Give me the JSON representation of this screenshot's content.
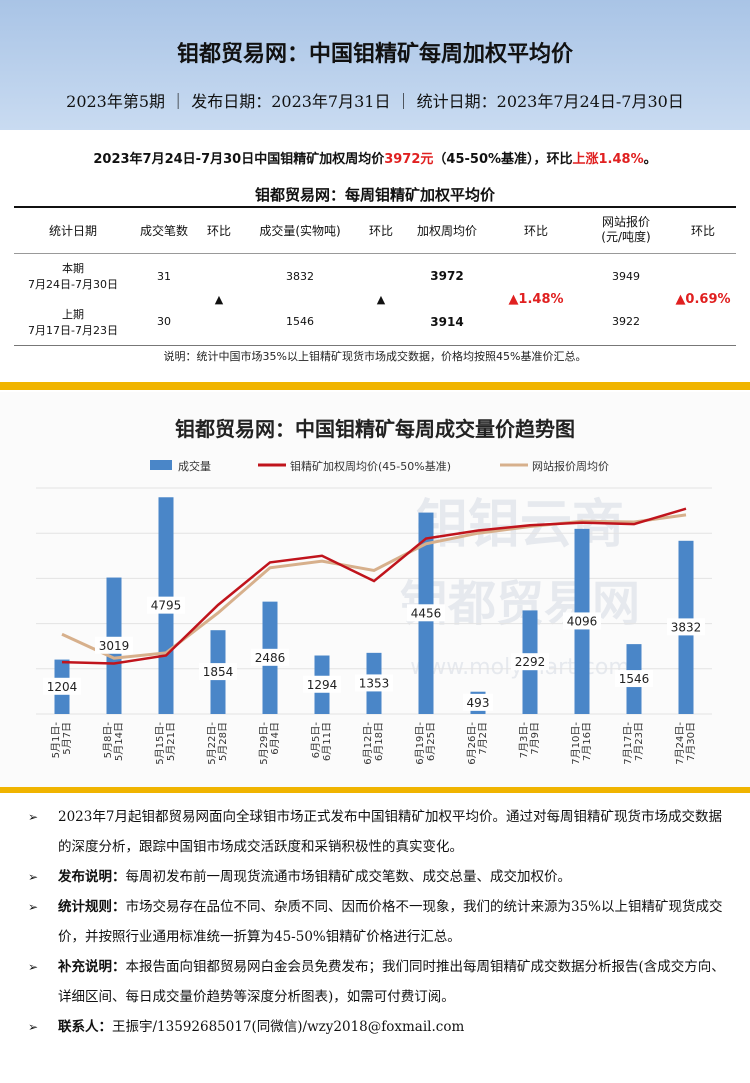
{
  "header": {
    "title": "钼都贸易网：中国钼精矿每周加权平均价",
    "subtitle": "2023年第5期 ｜ 发布日期：2023年7月31日 ｜ 统计日期：2023年7月24日-7月30日"
  },
  "summary": {
    "prefix": "2023年7月24日-7月30日中国钼精矿加权周均价",
    "price": "3972元",
    "middle": "（45-50%基准），环比",
    "change": "上涨1.48%",
    "suffix": "。"
  },
  "table": {
    "title": "钼都贸易网：每周钼精矿加权平均价",
    "headers": [
      "统计日期",
      "成交笔数",
      "环比",
      "成交量(实物吨)",
      "环比",
      "加权周均价",
      "环比",
      "网站报价\n(元/吨度)",
      "环比"
    ],
    "rows": [
      {
        "period": "本期",
        "dates": "7月24日-7月30日",
        "count": "31",
        "volume": "3832",
        "price": "3972",
        "site_price": "3949"
      },
      {
        "period": "上期",
        "dates": "7月17日-7月23日",
        "count": "30",
        "volume": "1546",
        "price": "3914",
        "site_price": "3922"
      }
    ],
    "count_change_icon": "▲",
    "volume_change_icon": "▲",
    "price_change": "▲1.48%",
    "site_change": "▲0.69%",
    "note": "说明：统计中国市场35%以上钼精矿现货市场成交数据，价格均按照45%基准价汇总。"
  },
  "colors": {
    "accent_bar": "#f0b400",
    "up_red": "#e02020",
    "bar_blue": "#4a86c8",
    "line_red": "#c0141c",
    "line_tan": "#d7b08c"
  },
  "watermark": [
    "钼钼云商",
    "钼都贸易网",
    "www.molymart.com"
  ],
  "chart_data": {
    "type": "bar",
    "title": "钼都贸易网：中国钼精矿每周成交量价趋势图",
    "legend": [
      "成交量",
      "钼精矿加权周均价(45-50%基准)",
      "网站报价周均价"
    ],
    "legend_position": "top",
    "categories": [
      "5月1日-5月7日",
      "5月8日-5月14日",
      "5月15日-5月21日",
      "5月22日-5月28日",
      "5月29日-6月4日",
      "6月5日-6月11日",
      "6月12日-6月18日",
      "6月19日-6月25日",
      "6月26日-7月2日",
      "7月3日-7月9日",
      "7月10日-7月16日",
      "7月17日-7月23日",
      "7月24日-7月30日"
    ],
    "series": [
      {
        "name": "成交量",
        "kind": "bar",
        "values": [
          1204,
          3019,
          4795,
          1854,
          2486,
          1294,
          1353,
          4456,
          493,
          2292,
          4096,
          1546,
          3832
        ]
      },
      {
        "name": "钼精矿加权周均价(45-50%基准)",
        "kind": "line",
        "values": [
          3395,
          3390,
          3420,
          3610,
          3770,
          3795,
          3700,
          3860,
          3890,
          3910,
          3920,
          3914,
          3972
        ]
      },
      {
        "name": "网站报价周均价",
        "kind": "line",
        "values": [
          3500,
          3410,
          3430,
          3580,
          3750,
          3775,
          3740,
          3840,
          3880,
          3905,
          3925,
          3922,
          3949
        ]
      }
    ],
    "bar_ylim": [
      0,
      5000
    ],
    "line_ylim": [
      3200,
      4050
    ],
    "grid": true
  },
  "bullets": [
    {
      "label": "",
      "text": "2023年7月起钼都贸易网面向全球钼市场正式发布中国钼精矿加权平均价。通过对每周钼精矿现货市场成交数据的深度分析，跟踪中国钼市场成交活跃度和采销积极性的真实变化。"
    },
    {
      "label": "发布说明：",
      "text": "每周初发布前一周现货流通市场钼精矿成交笔数、成交总量、成交加权价。"
    },
    {
      "label": "统计规则：",
      "text": "市场交易存在品位不同、杂质不同、因而价格不一现象，我们的统计来源为35%以上钼精矿现货成交价，并按照行业通用标准统一折算为45-50%钼精矿价格进行汇总。"
    },
    {
      "label": "补充说明：",
      "text": "本报告面向钼都贸易网白金会员免费发布；我们同时推出每周钼精矿成交数据分析报告(含成交方向、详细区间、每日成交量价趋势等深度分析图表)，如需可付费订阅。"
    },
    {
      "label": "联系人：",
      "text": "王振宇/13592685017(同微信)/wzy2018@foxmail.com"
    }
  ]
}
